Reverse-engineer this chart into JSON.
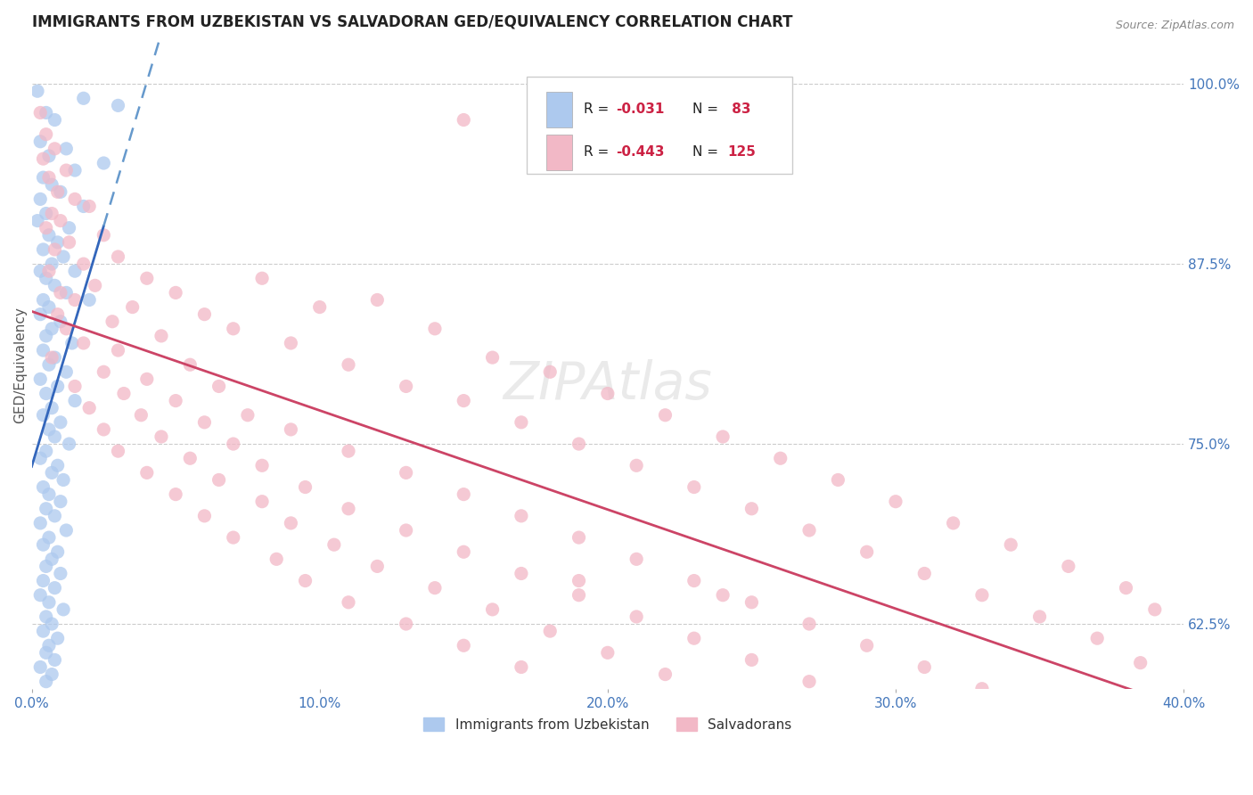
{
  "title": "IMMIGRANTS FROM UZBEKISTAN VS SALVADORAN GED/EQUIVALENCY CORRELATION CHART",
  "source": "Source: ZipAtlas.com",
  "ylabel": "GED/Equivalency",
  "x_tick_labels": [
    "0.0%",
    "10.0%",
    "20.0%",
    "30.0%",
    "40.0%"
  ],
  "x_tick_values": [
    0.0,
    10.0,
    20.0,
    30.0,
    40.0
  ],
  "xlim": [
    0.0,
    40.0
  ],
  "ylim": [
    58.0,
    103.0
  ],
  "y_tick_vals": [
    100.0,
    87.5,
    75.0,
    62.5
  ],
  "y_tick_labels": [
    "100.0%",
    "87.5%",
    "75.0%",
    "62.5%"
  ],
  "uzbekistan_color": "#adc9ee",
  "uzbekistan_edge": "#adc9ee",
  "salvadoran_color": "#f2b8c6",
  "salvadoran_edge": "#f2b8c6",
  "trend_blue_color": "#3366bb",
  "trend_blue_dashed_color": "#6699cc",
  "trend_pink_color": "#cc4466",
  "grid_color": "#cccccc",
  "watermark": "ZIPAtlas",
  "legend_items": [
    {
      "label_r": "R = ",
      "val_r": "-0.031",
      "label_n": "N = ",
      "val_n": " 83"
    },
    {
      "label_r": "R = ",
      "val_r": "-0.443",
      "label_n": "N = ",
      "val_n": "125"
    }
  ],
  "scatter_uzbekistan": [
    [
      0.2,
      99.5
    ],
    [
      0.5,
      98.0
    ],
    [
      1.8,
      99.0
    ],
    [
      3.0,
      98.5
    ],
    [
      0.8,
      97.5
    ],
    [
      0.3,
      96.0
    ],
    [
      1.2,
      95.5
    ],
    [
      0.6,
      95.0
    ],
    [
      2.5,
      94.5
    ],
    [
      1.5,
      94.0
    ],
    [
      0.4,
      93.5
    ],
    [
      0.7,
      93.0
    ],
    [
      1.0,
      92.5
    ],
    [
      0.3,
      92.0
    ],
    [
      1.8,
      91.5
    ],
    [
      0.5,
      91.0
    ],
    [
      0.2,
      90.5
    ],
    [
      1.3,
      90.0
    ],
    [
      0.6,
      89.5
    ],
    [
      0.9,
      89.0
    ],
    [
      0.4,
      88.5
    ],
    [
      1.1,
      88.0
    ],
    [
      0.7,
      87.5
    ],
    [
      0.3,
      87.0
    ],
    [
      1.5,
      87.0
    ],
    [
      0.5,
      86.5
    ],
    [
      0.8,
      86.0
    ],
    [
      1.2,
      85.5
    ],
    [
      0.4,
      85.0
    ],
    [
      2.0,
      85.0
    ],
    [
      0.6,
      84.5
    ],
    [
      0.3,
      84.0
    ],
    [
      1.0,
      83.5
    ],
    [
      0.7,
      83.0
    ],
    [
      0.5,
      82.5
    ],
    [
      1.4,
      82.0
    ],
    [
      0.4,
      81.5
    ],
    [
      0.8,
      81.0
    ],
    [
      0.6,
      80.5
    ],
    [
      1.2,
      80.0
    ],
    [
      0.3,
      79.5
    ],
    [
      0.9,
      79.0
    ],
    [
      0.5,
      78.5
    ],
    [
      1.5,
      78.0
    ],
    [
      0.7,
      77.5
    ],
    [
      0.4,
      77.0
    ],
    [
      1.0,
      76.5
    ],
    [
      0.6,
      76.0
    ],
    [
      0.8,
      75.5
    ],
    [
      1.3,
      75.0
    ],
    [
      0.5,
      74.5
    ],
    [
      0.3,
      74.0
    ],
    [
      0.9,
      73.5
    ],
    [
      0.7,
      73.0
    ],
    [
      1.1,
      72.5
    ],
    [
      0.4,
      72.0
    ],
    [
      0.6,
      71.5
    ],
    [
      1.0,
      71.0
    ],
    [
      0.5,
      70.5
    ],
    [
      0.8,
      70.0
    ],
    [
      0.3,
      69.5
    ],
    [
      1.2,
      69.0
    ],
    [
      0.6,
      68.5
    ],
    [
      0.4,
      68.0
    ],
    [
      0.9,
      67.5
    ],
    [
      0.7,
      67.0
    ],
    [
      0.5,
      66.5
    ],
    [
      1.0,
      66.0
    ],
    [
      0.4,
      65.5
    ],
    [
      0.8,
      65.0
    ],
    [
      0.3,
      64.5
    ],
    [
      0.6,
      64.0
    ],
    [
      1.1,
      63.5
    ],
    [
      0.5,
      63.0
    ],
    [
      0.7,
      62.5
    ],
    [
      0.4,
      62.0
    ],
    [
      0.9,
      61.5
    ],
    [
      0.6,
      61.0
    ],
    [
      0.5,
      60.5
    ],
    [
      0.8,
      60.0
    ],
    [
      0.3,
      59.5
    ],
    [
      0.7,
      59.0
    ],
    [
      0.5,
      58.5
    ]
  ],
  "scatter_salvadoran": [
    [
      0.3,
      98.0
    ],
    [
      15.0,
      97.5
    ],
    [
      0.5,
      96.5
    ],
    [
      0.8,
      95.5
    ],
    [
      0.4,
      94.8
    ],
    [
      1.2,
      94.0
    ],
    [
      0.6,
      93.5
    ],
    [
      0.9,
      92.5
    ],
    [
      1.5,
      92.0
    ],
    [
      2.0,
      91.5
    ],
    [
      0.7,
      91.0
    ],
    [
      1.0,
      90.5
    ],
    [
      0.5,
      90.0
    ],
    [
      2.5,
      89.5
    ],
    [
      1.3,
      89.0
    ],
    [
      0.8,
      88.5
    ],
    [
      3.0,
      88.0
    ],
    [
      1.8,
      87.5
    ],
    [
      0.6,
      87.0
    ],
    [
      4.0,
      86.5
    ],
    [
      2.2,
      86.0
    ],
    [
      1.0,
      85.5
    ],
    [
      5.0,
      85.5
    ],
    [
      1.5,
      85.0
    ],
    [
      3.5,
      84.5
    ],
    [
      0.9,
      84.0
    ],
    [
      6.0,
      84.0
    ],
    [
      2.8,
      83.5
    ],
    [
      1.2,
      83.0
    ],
    [
      8.0,
      86.5
    ],
    [
      4.5,
      82.5
    ],
    [
      1.8,
      82.0
    ],
    [
      7.0,
      83.0
    ],
    [
      3.0,
      81.5
    ],
    [
      0.7,
      81.0
    ],
    [
      10.0,
      84.5
    ],
    [
      5.5,
      80.5
    ],
    [
      2.5,
      80.0
    ],
    [
      9.0,
      82.0
    ],
    [
      4.0,
      79.5
    ],
    [
      1.5,
      79.0
    ],
    [
      12.0,
      85.0
    ],
    [
      6.5,
      79.0
    ],
    [
      3.2,
      78.5
    ],
    [
      11.0,
      80.5
    ],
    [
      5.0,
      78.0
    ],
    [
      2.0,
      77.5
    ],
    [
      14.0,
      83.0
    ],
    [
      7.5,
      77.0
    ],
    [
      3.8,
      77.0
    ],
    [
      13.0,
      79.0
    ],
    [
      6.0,
      76.5
    ],
    [
      2.5,
      76.0
    ],
    [
      16.0,
      81.0
    ],
    [
      9.0,
      76.0
    ],
    [
      4.5,
      75.5
    ],
    [
      15.0,
      78.0
    ],
    [
      7.0,
      75.0
    ],
    [
      3.0,
      74.5
    ],
    [
      18.0,
      80.0
    ],
    [
      11.0,
      74.5
    ],
    [
      5.5,
      74.0
    ],
    [
      17.0,
      76.5
    ],
    [
      8.0,
      73.5
    ],
    [
      4.0,
      73.0
    ],
    [
      20.0,
      78.5
    ],
    [
      13.0,
      73.0
    ],
    [
      6.5,
      72.5
    ],
    [
      19.0,
      75.0
    ],
    [
      9.5,
      72.0
    ],
    [
      5.0,
      71.5
    ],
    [
      22.0,
      77.0
    ],
    [
      15.0,
      71.5
    ],
    [
      8.0,
      71.0
    ],
    [
      21.0,
      73.5
    ],
    [
      11.0,
      70.5
    ],
    [
      6.0,
      70.0
    ],
    [
      24.0,
      75.5
    ],
    [
      17.0,
      70.0
    ],
    [
      9.0,
      69.5
    ],
    [
      23.0,
      72.0
    ],
    [
      13.0,
      69.0
    ],
    [
      7.0,
      68.5
    ],
    [
      26.0,
      74.0
    ],
    [
      19.0,
      68.5
    ],
    [
      10.5,
      68.0
    ],
    [
      25.0,
      70.5
    ],
    [
      15.0,
      67.5
    ],
    [
      8.5,
      67.0
    ],
    [
      28.0,
      72.5
    ],
    [
      21.0,
      67.0
    ],
    [
      12.0,
      66.5
    ],
    [
      27.0,
      69.0
    ],
    [
      17.0,
      66.0
    ],
    [
      9.5,
      65.5
    ],
    [
      30.0,
      71.0
    ],
    [
      23.0,
      65.5
    ],
    [
      14.0,
      65.0
    ],
    [
      29.0,
      67.5
    ],
    [
      19.0,
      64.5
    ],
    [
      11.0,
      64.0
    ],
    [
      32.0,
      69.5
    ],
    [
      25.0,
      64.0
    ],
    [
      16.0,
      63.5
    ],
    [
      31.0,
      66.0
    ],
    [
      21.0,
      63.0
    ],
    [
      13.0,
      62.5
    ],
    [
      34.0,
      68.0
    ],
    [
      27.0,
      62.5
    ],
    [
      18.0,
      62.0
    ],
    [
      33.0,
      64.5
    ],
    [
      23.0,
      61.5
    ],
    [
      15.0,
      61.0
    ],
    [
      36.0,
      66.5
    ],
    [
      29.0,
      61.0
    ],
    [
      20.0,
      60.5
    ],
    [
      35.0,
      63.0
    ],
    [
      25.0,
      60.0
    ],
    [
      17.0,
      59.5
    ],
    [
      38.0,
      65.0
    ],
    [
      31.0,
      59.5
    ],
    [
      22.0,
      59.0
    ],
    [
      37.0,
      61.5
    ],
    [
      27.0,
      58.5
    ],
    [
      19.0,
      65.5
    ],
    [
      39.0,
      63.5
    ],
    [
      33.0,
      58.0
    ],
    [
      24.0,
      64.5
    ],
    [
      38.5,
      59.8
    ]
  ]
}
